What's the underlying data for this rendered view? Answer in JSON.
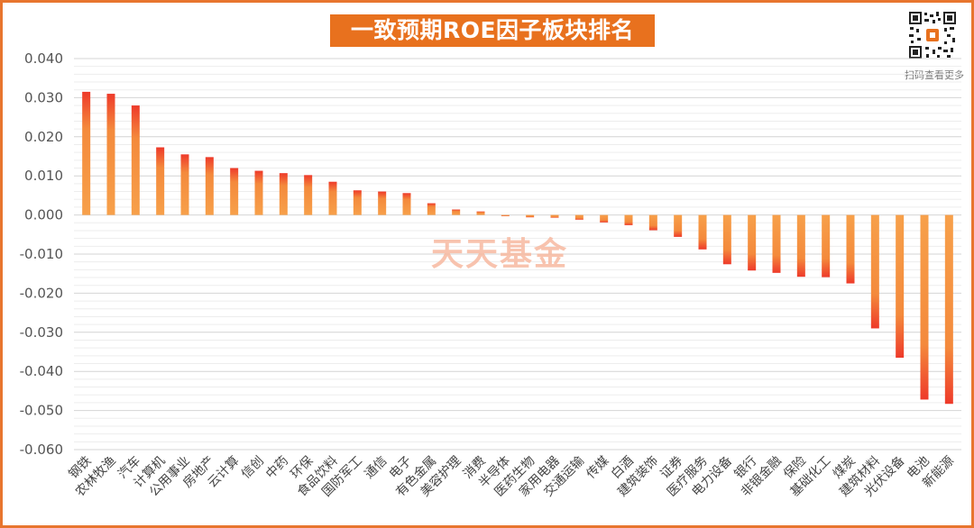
{
  "title": "一致预期ROE因子板块排名",
  "qr_caption": "扫码查看更多",
  "watermark": "天天基金",
  "colors": {
    "frame": "#E8752E",
    "title_bg": "#E8711E",
    "bar_base": "#F7A04A",
    "bar_tip": "#EE3A2A",
    "grid": "#D9D9D9"
  },
  "chart_data": {
    "type": "bar",
    "title": "一致预期ROE因子板块排名",
    "xlabel": "",
    "ylabel": "",
    "ylim": [
      -0.06,
      0.04
    ],
    "yticks": [
      "0.040",
      "0.030",
      "0.020",
      "0.010",
      "0.000",
      "-0.010",
      "-0.020",
      "-0.030",
      "-0.040",
      "-0.050",
      "-0.060"
    ],
    "grid": true,
    "categories": [
      "钢铁",
      "农林牧渔",
      "汽车",
      "计算机",
      "公用事业",
      "房地产",
      "云计算",
      "信创",
      "中药",
      "环保",
      "食品饮料",
      "国防军工",
      "通信",
      "电子",
      "有色金属",
      "美容护理",
      "消费",
      "半导体",
      "医药生物",
      "家用电器",
      "交通运输",
      "传媒",
      "白酒",
      "建筑装饰",
      "证券",
      "医疗服务",
      "电力设备",
      "银行",
      "非银金融",
      "保险",
      "基础化工",
      "煤炭",
      "建筑材料",
      "光伏设备",
      "电池",
      "新能源"
    ],
    "values": [
      0.0315,
      0.031,
      0.028,
      0.0173,
      0.0155,
      0.0148,
      0.012,
      0.0113,
      0.0107,
      0.0102,
      0.0085,
      0.0063,
      0.006,
      0.0056,
      0.003,
      0.0014,
      0.0009,
      -0.0003,
      -0.0006,
      -0.0007,
      -0.0012,
      -0.0019,
      -0.0026,
      -0.0039,
      -0.0056,
      -0.0088,
      -0.0126,
      -0.0142,
      -0.0148,
      -0.0158,
      -0.0159,
      -0.0175,
      -0.029,
      -0.0365,
      -0.0472,
      -0.0483
    ]
  }
}
